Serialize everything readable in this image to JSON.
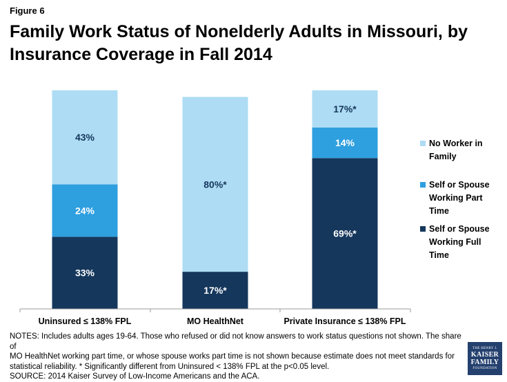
{
  "figure_label": "Figure 6",
  "title": "Family Work Status of Nonelderly Adults in Missouri, by Insurance Coverage in Fall 2014",
  "notes": {
    "line1": "NOTES: Includes adults ages 19-64. Those who refused or did not know answers to work status questions not shown. The share of",
    "line2": "MO HealthNet working part time, or whose spouse works part time is not shown because estimate does not meet standards for",
    "line3": "statistical reliability. * Significantly different from Uninsured < 138% FPL at the p<0.05 level.",
    "source": "SOURCE: 2014 Kaiser Survey of Low-Income Americans and the ACA."
  },
  "logo": {
    "line1": "THE HENRY J.",
    "line2": "KAISER",
    "line3": "FAMILY",
    "line4": "FOUNDATION"
  },
  "colors": {
    "full_time": "#15375c",
    "part_time": "#2e9fdf",
    "no_worker": "#aedcf4",
    "axis": "#9a9a9a"
  },
  "chart_data": {
    "type": "bar",
    "stacked": true,
    "categories": [
      "Uninsured ≤ 138% FPL",
      "MO HealthNet",
      "Private Insurance ≤ 138% FPL"
    ],
    "series": [
      {
        "name": "Self or Spouse Working Full Time",
        "color": "#15375c",
        "values": [
          33,
          17,
          69
        ],
        "labels": [
          "33%",
          "17%*",
          "69%*"
        ]
      },
      {
        "name": "Self or Spouse Working Part Time",
        "color": "#2e9fdf",
        "values": [
          24,
          0,
          14
        ],
        "labels": [
          "24%",
          "",
          "14%"
        ]
      },
      {
        "name": "No Worker in Family",
        "color": "#aedcf4",
        "values": [
          43,
          80,
          17
        ],
        "labels": [
          "43%",
          "80%*",
          "17%*"
        ]
      }
    ],
    "legend": {
      "placement": "right",
      "entries": [
        {
          "lines": [
            "No Worker in",
            "Family"
          ],
          "color": "#aedcf4"
        },
        {
          "lines": [
            "Self or Spouse",
            "Working Part",
            "Time"
          ],
          "color": "#2e9fdf"
        },
        {
          "lines": [
            "Self or Spouse",
            "Working Full",
            "Time"
          ],
          "color": "#15375c"
        }
      ]
    },
    "ylim": [
      0,
      100
    ],
    "grid": false
  }
}
